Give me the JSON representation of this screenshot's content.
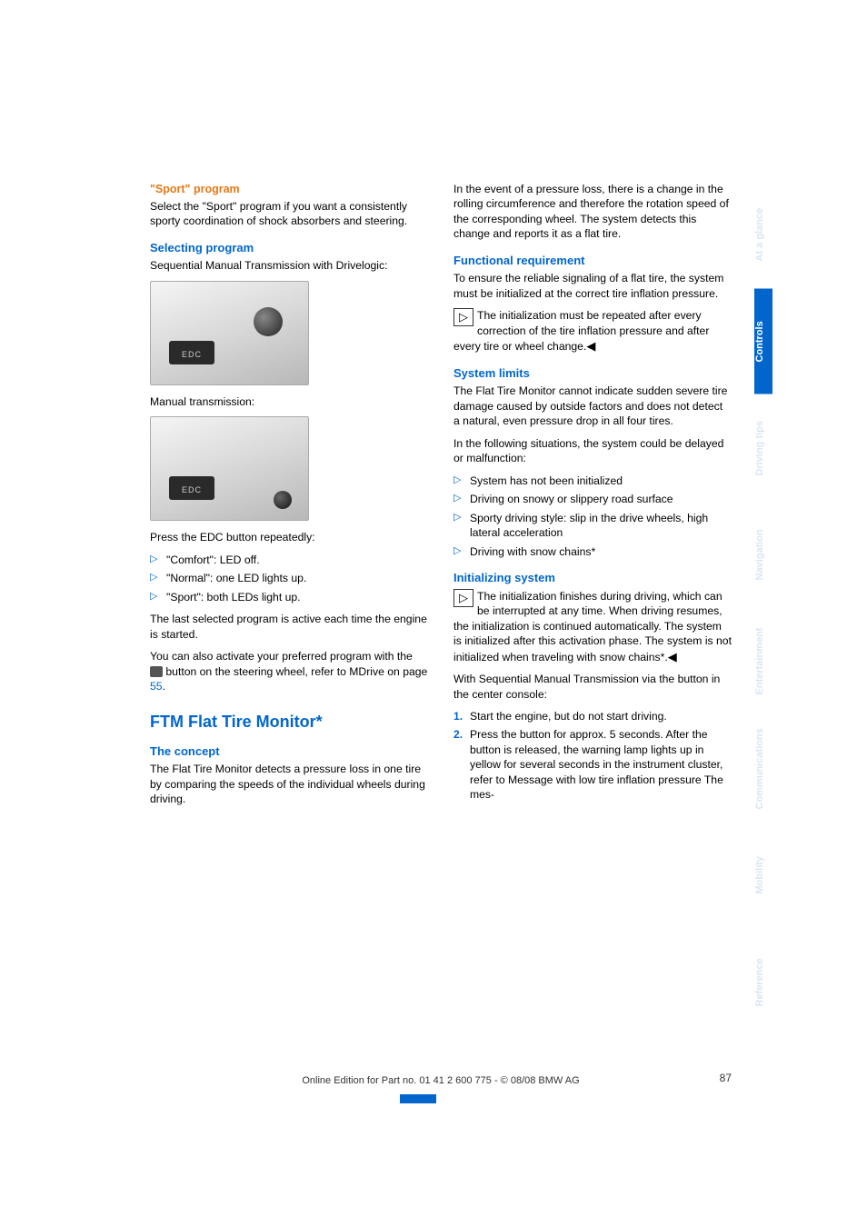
{
  "left": {
    "sport_h": "\"Sport\" program",
    "sport_p": "Select the \"Sport\" program if you want a consistently sporty coordination of shock absorbers and steering.",
    "select_h": "Selecting program",
    "select_p": "Sequential Manual Transmission with Drivelogic:",
    "manual_label": "Manual transmission:",
    "press_label": "Press the EDC button repeatedly:",
    "modes": [
      "\"Comfort\": LED off.",
      "\"Normal\": one LED lights up.",
      "\"Sport\": both LEDs light up."
    ],
    "last_p": "The last selected program is active each time the engine is started.",
    "activate_pre": "You can also activate your preferred program with the ",
    "activate_post": " button on the steering wheel, refer to MDrive on page ",
    "activate_link": "55",
    "activate_end": ".",
    "ftm_h": "FTM Flat Tire Monitor*",
    "concept_h": "The concept",
    "concept_p": "The Flat Tire Monitor detects a pressure loss in one tire by comparing the speeds of the individual wheels during driving.",
    "edc_label": "EDC"
  },
  "right": {
    "intro_p": "In the event of a pressure loss, there is a change in the rolling circumference and therefore the rotation speed of the corresponding wheel. The system detects this change and reports it as a flat tire.",
    "func_h": "Functional requirement",
    "func_p": "To ensure the reliable signaling of a flat tire, the system must be initialized at the correct tire inflation pressure.",
    "func_note": "The initialization must be repeated after every correction of the tire inflation pressure and after every tire or wheel change.",
    "limits_h": "System limits",
    "limits_p": "The Flat Tire Monitor cannot indicate sudden severe tire damage caused by outside factors and does not detect a natural, even pressure drop in all four tires.",
    "limits_p2": "In the following situations, the system could be delayed or malfunction:",
    "limits_items": [
      "System has not been initialized",
      "Driving on snowy or slippery road surface",
      "Sporty driving style: slip in the drive wheels, high lateral acceleration",
      "Driving with snow chains*"
    ],
    "init_h": "Initializing system",
    "init_note": "The initialization finishes during driving, which can be interrupted at any time. When driving resumes, the initialization is continued automatically. The system is initialized after this activation phase. The system is not initialized when traveling with snow chains*.",
    "init_p2": "With Sequential Manual Transmission via the button in the center console:",
    "steps": [
      "Start the engine, but do not start driving.",
      "Press the button for approx. 5 seconds. After the button is released, the warning lamp lights up in yellow for several seconds in the instrument cluster, refer to Message with low tire inflation pressure The mes-"
    ],
    "end_mark": "◀"
  },
  "tabs": [
    "At a glance",
    "Controls",
    "Driving tips",
    "Navigation",
    "Entertainment",
    "Communications",
    "Mobility",
    "Reference"
  ],
  "active_tab": 1,
  "footer": "Online Edition for Part no. 01 41 2 600 775 - © 08/08 BMW AG",
  "page_number": "87"
}
